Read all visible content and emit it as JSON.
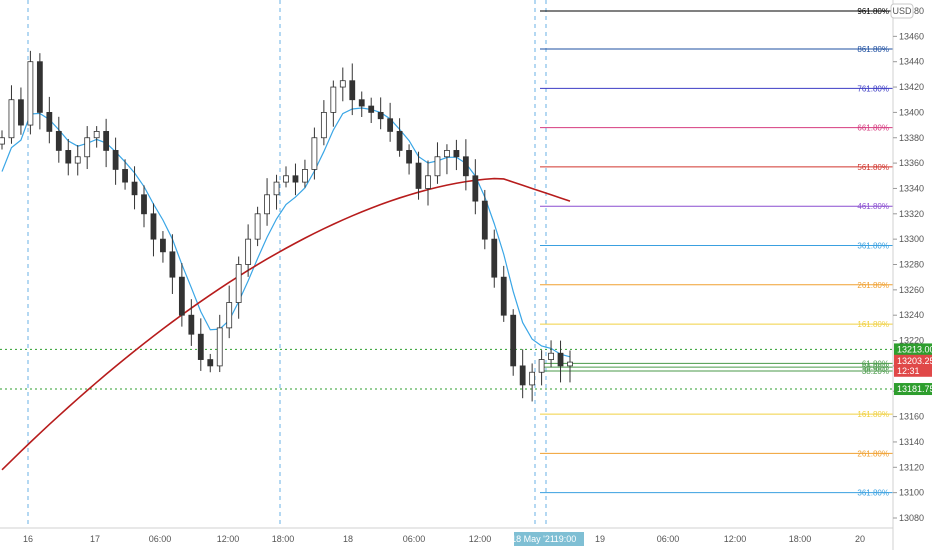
{
  "currency": "USD",
  "chart_data": {
    "type": "candlestick",
    "y_range": [
      13080,
      13483
    ],
    "y_ticks": [
      13080,
      13100,
      13120,
      13140,
      13160,
      13180,
      13200,
      13220,
      13240,
      13260,
      13280,
      13300,
      13320,
      13340,
      13360,
      13380,
      13400,
      13420,
      13440,
      13460,
      13480
    ],
    "x_ticks": [
      "16",
      "17",
      "06:00",
      "12:00",
      "18:00",
      "18",
      "06:00",
      "12:00",
      "19:00",
      "19",
      "06:00",
      "12:00",
      "18:00",
      "20"
    ],
    "crosshair_time_label": "18 May '21",
    "fib_levels_above": [
      {
        "label": "961.80%",
        "price": 13480,
        "color": "#000000"
      },
      {
        "label": "861.80%",
        "price": 13450,
        "color": "#1e4fa0"
      },
      {
        "label": "761.80%",
        "price": 13419,
        "color": "#3b3bc4"
      },
      {
        "label": "661.80%",
        "price": 13388,
        "color": "#d63b7f"
      },
      {
        "label": "561.80%",
        "price": 13357,
        "color": "#d0342c"
      },
      {
        "label": "461.80%",
        "price": 13326,
        "color": "#8a4fd0"
      },
      {
        "label": "361.80%",
        "price": 13295,
        "color": "#3aa0e0"
      },
      {
        "label": "261.80%",
        "price": 13264,
        "color": "#f0a030"
      },
      {
        "label": "161.80%",
        "price": 13233,
        "color": "#f0d040"
      }
    ],
    "fib_levels_below": [
      {
        "label": "161.80%",
        "price": 13162,
        "color": "#f0d040"
      },
      {
        "label": "261.80%",
        "price": 13131,
        "color": "#f0a030"
      },
      {
        "label": "361.80%",
        "price": 13100,
        "color": "#3aa0e0"
      }
    ],
    "fib_levels_near": [
      {
        "label": "61.80%",
        "price": 13202,
        "color": "#4a9a4a"
      },
      {
        "label": "50.00%",
        "price": 13199,
        "color": "#4a9a4a"
      },
      {
        "label": "38.20%",
        "price": 13196,
        "color": "#4a9a4a"
      }
    ],
    "horizontal_levels": [
      {
        "price": 13213.0,
        "label": "13213.00",
        "color": "#2e9e2e"
      },
      {
        "price": 13181.75,
        "label": "13181.75",
        "color": "#2e9e2e"
      }
    ],
    "last_price": {
      "price": 13203.25,
      "label": "13203.25",
      "countdown": "12:31",
      "color": "#e04848"
    },
    "moving_average_fast": {
      "color": "#3aa6e6"
    },
    "moving_average_slow": {
      "color": "#b71c1c"
    },
    "candles_close_path": [
      13380,
      13410,
      13390,
      13440,
      13400,
      13385,
      13370,
      13360,
      13365,
      13380,
      13385,
      13370,
      13355,
      13345,
      13335,
      13320,
      13300,
      13290,
      13270,
      13240,
      13225,
      13205,
      13200,
      13230,
      13250,
      13280,
      13300,
      13320,
      13335,
      13345,
      13350,
      13345,
      13355,
      13380,
      13400,
      13420,
      13425,
      13410,
      13405,
      13400,
      13395,
      13385,
      13370,
      13360,
      13340,
      13350,
      13365,
      13370,
      13365,
      13350,
      13330,
      13300,
      13270,
      13240,
      13200,
      13185,
      13195,
      13205,
      13210,
      13200,
      13203
    ]
  }
}
